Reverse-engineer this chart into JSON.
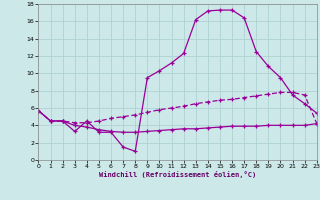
{
  "xlabel": "Windchill (Refroidissement éolien,°C)",
  "background_color": "#cce8e8",
  "grid_color": "#aacece",
  "line_color": "#990099",
  "xlim": [
    0,
    23
  ],
  "ylim": [
    0,
    18
  ],
  "xticks": [
    0,
    1,
    2,
    3,
    4,
    5,
    6,
    7,
    8,
    9,
    10,
    11,
    12,
    13,
    14,
    15,
    16,
    17,
    18,
    19,
    20,
    21,
    22,
    23
  ],
  "yticks": [
    0,
    2,
    4,
    6,
    8,
    10,
    12,
    14,
    16,
    18
  ],
  "curve1_x": [
    0,
    1,
    2,
    3,
    4,
    5,
    6,
    7,
    8,
    9,
    10,
    11,
    12,
    13,
    14,
    15,
    16,
    17,
    18,
    19,
    20,
    21,
    22,
    23
  ],
  "curve1_y": [
    5.7,
    4.5,
    4.5,
    3.3,
    4.5,
    3.2,
    3.2,
    1.5,
    1.0,
    9.5,
    10.3,
    11.2,
    12.3,
    16.2,
    17.2,
    17.3,
    17.3,
    16.4,
    12.5,
    10.8,
    9.5,
    7.5,
    6.5,
    5.4
  ],
  "curve2_x": [
    0,
    1,
    2,
    3,
    4,
    5,
    6,
    7,
    8,
    9,
    10,
    11,
    12,
    13,
    14,
    15,
    16,
    17,
    18,
    19,
    20,
    21,
    22,
    23
  ],
  "curve2_y": [
    5.7,
    4.5,
    4.5,
    4.3,
    4.3,
    4.5,
    4.8,
    5.0,
    5.2,
    5.5,
    5.8,
    6.0,
    6.2,
    6.5,
    6.7,
    6.9,
    7.0,
    7.2,
    7.4,
    7.6,
    7.8,
    7.8,
    7.5,
    4.2
  ],
  "curve3_x": [
    0,
    1,
    2,
    3,
    4,
    5,
    6,
    7,
    8,
    9,
    10,
    11,
    12,
    13,
    14,
    15,
    16,
    17,
    18,
    19,
    20,
    21,
    22,
    23
  ],
  "curve3_y": [
    5.7,
    4.5,
    4.5,
    4.0,
    3.8,
    3.5,
    3.3,
    3.2,
    3.2,
    3.3,
    3.4,
    3.5,
    3.6,
    3.6,
    3.7,
    3.8,
    3.9,
    3.9,
    3.9,
    4.0,
    4.0,
    4.0,
    4.0,
    4.2
  ]
}
